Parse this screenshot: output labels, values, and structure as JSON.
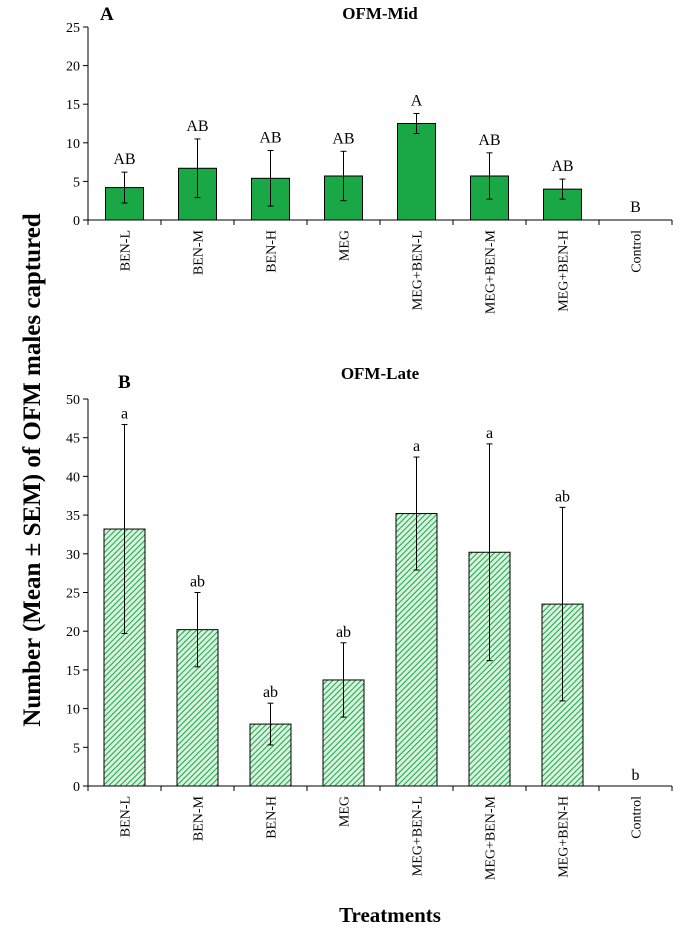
{
  "figure": {
    "ylabel": "Number (Mean ± SEM) of OFM males captured",
    "xlabel": "Treatments"
  },
  "chart_data": [
    {
      "type": "bar",
      "panel": "A",
      "title": "OFM-Mid",
      "categories": [
        "BEN-L",
        "BEN-M",
        "BEN-H",
        "MEG",
        "MEG+BEN-L",
        "MEG+BEN-M",
        "MEG+BEN-H",
        "Control"
      ],
      "values": [
        4.2,
        6.7,
        5.4,
        5.7,
        12.5,
        5.7,
        4.0,
        0
      ],
      "errors": [
        2.0,
        3.8,
        3.6,
        3.2,
        1.3,
        3.0,
        1.3,
        0
      ],
      "letters": [
        "AB",
        "AB",
        "AB",
        "AB",
        "A",
        "AB",
        "AB",
        "B"
      ],
      "ylim": [
        0,
        25
      ],
      "yticks": [
        0,
        5,
        10,
        15,
        20,
        25
      ],
      "fill": "#1aa745",
      "pattern": "solid"
    },
    {
      "type": "bar",
      "panel": "B",
      "title": "OFM-Late",
      "categories": [
        "BEN-L",
        "BEN-M",
        "BEN-H",
        "MEG",
        "MEG+BEN-L",
        "MEG+BEN-M",
        "MEG+BEN-H",
        "Control"
      ],
      "values": [
        33.2,
        20.2,
        8.0,
        13.7,
        35.2,
        30.2,
        23.5,
        0
      ],
      "errors": [
        13.5,
        4.8,
        2.7,
        4.8,
        7.3,
        14.0,
        12.5,
        0
      ],
      "letters": [
        "a",
        "ab",
        "ab",
        "ab",
        "a",
        "a",
        "ab",
        "b"
      ],
      "ylim": [
        0,
        50
      ],
      "yticks": [
        0,
        5,
        10,
        15,
        20,
        25,
        30,
        35,
        40,
        45,
        50
      ],
      "fill": "#1aa745",
      "pattern": "hatch"
    }
  ]
}
